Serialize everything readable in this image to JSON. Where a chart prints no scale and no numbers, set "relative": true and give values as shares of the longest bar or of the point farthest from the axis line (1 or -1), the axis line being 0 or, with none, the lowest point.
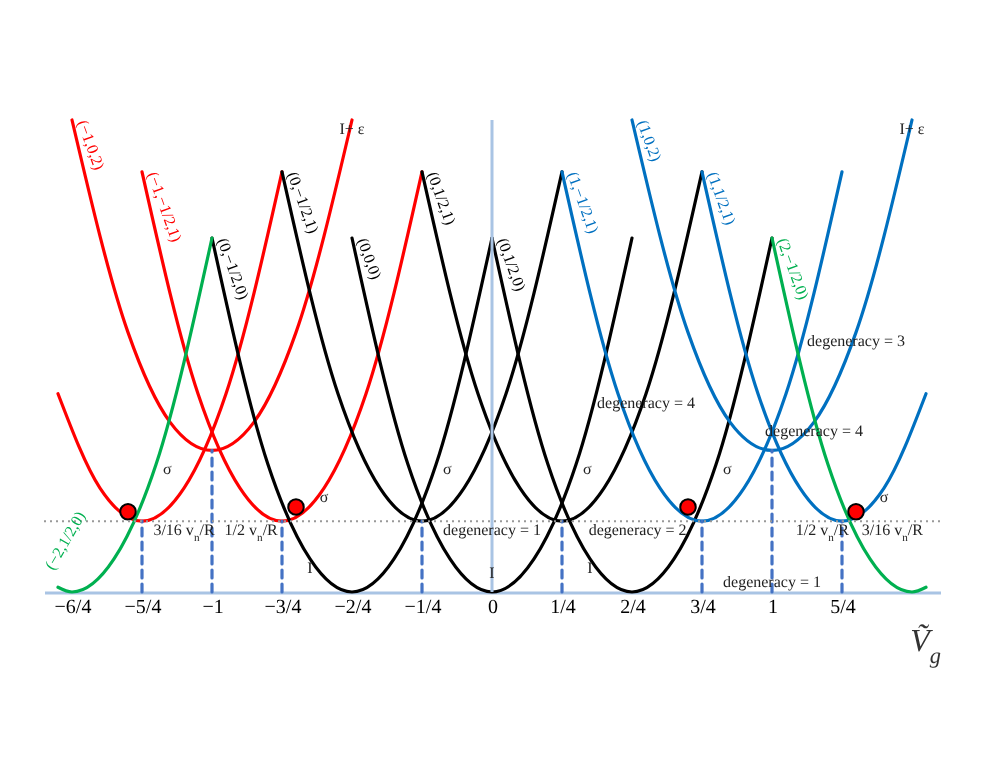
{
  "chart_data": {
    "type": "line",
    "relative": true,
    "xlabel": "Ṽ$_{g}$",
    "xlim": [
      -1.6,
      1.6
    ],
    "xticks": [
      {
        "value": -1.5,
        "label": "−6/4"
      },
      {
        "value": -1.25,
        "label": "−5/4"
      },
      {
        "value": -1,
        "label": "−1"
      },
      {
        "value": -0.75,
        "label": "−3/4"
      },
      {
        "value": -0.5,
        "label": "−2/4"
      },
      {
        "value": -0.25,
        "label": "−1/4"
      },
      {
        "value": 0,
        "label": "0"
      },
      {
        "value": 0.25,
        "label": "1/4"
      },
      {
        "value": 0.5,
        "label": "2/4"
      },
      {
        "value": 0.75,
        "label": "3/4"
      },
      {
        "value": 1,
        "label": "1"
      },
      {
        "value": 1.25,
        "label": "5/4"
      }
    ],
    "series": [
      {
        "name": "(−1,0,2)",
        "color": "#ff0000",
        "x": [
          -1.5,
          -1.3,
          -1.15,
          -1,
          -0.85,
          -0.7,
          -0.5
        ],
        "values": [
          1,
          0.55,
          0.36,
          0.3,
          0.36,
          0.55,
          1
        ]
      },
      {
        "name": "(−1,−1/2,1)",
        "color": "#ff0000",
        "x": [
          -1.25,
          -1.05,
          -0.9,
          -0.75,
          -0.6,
          -0.45,
          -0.25
        ],
        "values": [
          0.89,
          0.42,
          0.22,
          0.15,
          0.22,
          0.42,
          0.89
        ]
      },
      {
        "color": "#ff0000",
        "x": [
          -1.55,
          -1.4,
          -1.25,
          -1.1,
          -0.95,
          -0.75
        ],
        "values": [
          0.42,
          0.22,
          0.15,
          0.22,
          0.42,
          0.89
        ]
      },
      {
        "name": "(0,−1/2,0)",
        "color": "#000000",
        "x": [
          -1,
          -0.8,
          -0.65,
          -0.5,
          -0.35,
          -0.2,
          0
        ],
        "values": [
          0.75,
          0.27,
          0.07,
          0,
          0.07,
          0.27,
          0.75
        ]
      },
      {
        "name": "(0,−1/2,1)",
        "color": "#000000",
        "x": [
          -0.75,
          -0.55,
          -0.4,
          -0.25,
          -0.1,
          0.05,
          0.25
        ],
        "values": [
          0.89,
          0.42,
          0.22,
          0.15,
          0.22,
          0.42,
          0.89
        ]
      },
      {
        "name": "(0,0,0)",
        "color": "#000000",
        "x": [
          -0.5,
          -0.3,
          -0.15,
          0,
          0.15,
          0.3,
          0.5
        ],
        "values": [
          0.75,
          0.27,
          0.07,
          0,
          0.07,
          0.27,
          0.75
        ]
      },
      {
        "name": "(0,1/2,1)",
        "color": "#000000",
        "x": [
          -0.25,
          -0.05,
          0.1,
          0.25,
          0.4,
          0.55,
          0.75
        ],
        "values": [
          0.89,
          0.42,
          0.22,
          0.15,
          0.22,
          0.42,
          0.89
        ]
      },
      {
        "name": "(0,1/2,0)",
        "color": "#000000",
        "x": [
          0,
          0.2,
          0.35,
          0.5,
          0.65,
          0.8,
          1
        ],
        "values": [
          0.75,
          0.27,
          0.07,
          0,
          0.07,
          0.27,
          0.75
        ]
      },
      {
        "name": "(1,−1/2,1)",
        "color": "#0070c0",
        "x": [
          0.25,
          0.45,
          0.6,
          0.75,
          0.9,
          1.05,
          1.25
        ],
        "values": [
          0.89,
          0.42,
          0.22,
          0.15,
          0.22,
          0.42,
          0.89
        ]
      },
      {
        "name": "(1,0,2)",
        "color": "#0070c0",
        "x": [
          0.5,
          0.7,
          0.85,
          1,
          1.15,
          1.3,
          1.5
        ],
        "values": [
          1,
          0.55,
          0.36,
          0.3,
          0.36,
          0.55,
          1
        ]
      },
      {
        "name": "(1,1/2,1)",
        "color": "#0070c0",
        "x": [
          0.75,
          0.95,
          1.1,
          1.25,
          1.4,
          1.55
        ],
        "values": [
          0.89,
          0.42,
          0.22,
          0.15,
          0.22,
          0.42
        ]
      },
      {
        "name": "(2,−1/2,0)",
        "color": "#00b050",
        "x": [
          1,
          1.2,
          1.35,
          1.5,
          1.55
        ],
        "values": [
          0.75,
          0.27,
          0.07,
          0,
          0.01
        ]
      },
      {
        "name": "(−2,1/2,0)",
        "color": "#00b050",
        "x": [
          -1.55,
          -1.5,
          -1.35,
          -1.2,
          -1
        ],
        "values": [
          0.01,
          0,
          0.07,
          0.27,
          0.75
        ]
      },
      {
        "type": "line",
        "line_style": "dashed",
        "color": "#4472c4",
        "x": [
          -1.25,
          -1.25,
          null,
          -1,
          -1,
          null,
          -0.75,
          -0.75,
          null,
          -0.25,
          -0.25,
          null,
          0.25,
          0.25,
          null,
          0.75,
          0.75,
          null,
          1,
          1,
          null,
          1.25,
          1.25
        ],
        "values": [
          0,
          0.15,
          null,
          0,
          0.3,
          null,
          0,
          0.15,
          null,
          0,
          0.15,
          null,
          0,
          0.15,
          null,
          0,
          0.15,
          null,
          0,
          0.3,
          null,
          0,
          0.15
        ]
      },
      {
        "type": "scatter",
        "marker": "circle",
        "color": "#ff0000",
        "x": [
          -1.3,
          -0.7,
          0.7,
          1.3
        ],
        "values": [
          0.17,
          0.18,
          0.18,
          0.17
        ]
      }
    ],
    "ref_lines": [
      {
        "axis": "x",
        "value": 0,
        "color": "#a9c4e4",
        "line_style": "solid"
      },
      {
        "axis": "y",
        "value": 0.15,
        "color": "#999999",
        "line_style": "dotted"
      }
    ],
    "annotations": [
      {
        "text": "σ",
        "x": -1.16,
        "y": 0.28
      },
      {
        "text": "σ",
        "x": -0.6,
        "y": 0.22
      },
      {
        "text": "σ",
        "x": -0.16,
        "y": 0.28
      },
      {
        "text": "σ",
        "x": 0.34,
        "y": 0.28
      },
      {
        "text": "σ",
        "x": 0.84,
        "y": 0.28
      },
      {
        "text": "σ",
        "x": 1.4,
        "y": 0.22
      },
      {
        "text": "I",
        "x": -0.65,
        "y": 0.07
      },
      {
        "text": "I",
        "x": 0,
        "y": 0.06
      },
      {
        "text": "I",
        "x": 0.35,
        "y": 0.07
      },
      {
        "text": "I+ ε",
        "x": -0.5,
        "y": 1
      },
      {
        "text": "I+ ε",
        "x": 1.5,
        "y": 1
      },
      {
        "text": "degeneracy = 1",
        "x": 0,
        "y": 0.15
      },
      {
        "text": "degeneracy = 2",
        "x": 0.52,
        "y": 0.15
      },
      {
        "text": "degeneracy = 4",
        "x": 0.55,
        "y": 0.42
      },
      {
        "text": "degeneracy = 3",
        "x": 1.3,
        "y": 0.55
      },
      {
        "text": "degeneracy = 4",
        "x": 1.15,
        "y": 0.36
      },
      {
        "text": "degeneracy = 1",
        "x": 1,
        "y": 0.04
      },
      {
        "text": "3/16 v$_{n}$/R",
        "x": -1.1,
        "y": 0.15
      },
      {
        "text": "1/2 v$_{n}$/R",
        "x": -0.86,
        "y": 0.15
      },
      {
        "text": "1/2 v$_{n}$/R",
        "x": 1.18,
        "y": 0.15
      },
      {
        "text": "3/16 v$_{n}$/R",
        "x": 1.43,
        "y": 0.15
      }
    ]
  }
}
